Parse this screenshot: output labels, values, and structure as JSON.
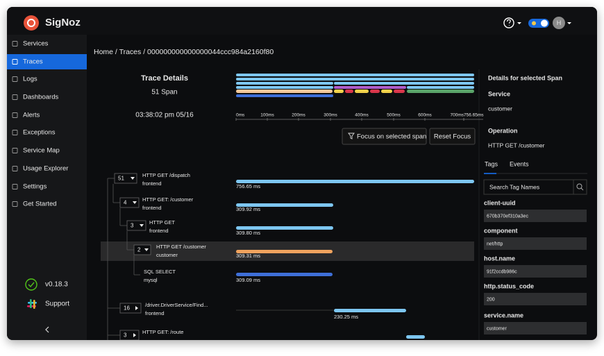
{
  "header": {
    "logo": "SigNoz",
    "avatar": "H"
  },
  "sidebar": {
    "items": [
      "Services",
      "Traces",
      "Logs",
      "Dashboards",
      "Alerts",
      "Exceptions",
      "Service Map",
      "Usage Explorer",
      "Settings",
      "Get Started"
    ],
    "selected": 1,
    "version": "v0.18.3",
    "support": "Support"
  },
  "breadcrumb": "Home / Traces / 000000000000000044ccc984a2160f80",
  "trace_details": {
    "title": "Trace Details",
    "span_count": "51 Span",
    "timestamp": "03:38:02 pm 05/16"
  },
  "timeline": {
    "ticks": [
      "0ms",
      "100ms",
      "200ms",
      "300ms",
      "400ms",
      "500ms",
      "600ms",
      "700ms",
      "756.65ms"
    ]
  },
  "buttons": {
    "focus": "Focus on selected span",
    "reset": "Reset Focus"
  },
  "spans": [
    {
      "count": 51,
      "name": "HTTP GET /dispatch",
      "service": "frontend",
      "duration": "756.65 ms"
    },
    {
      "count": 4,
      "name": "HTTP GET: /customer",
      "service": "frontend",
      "duration": "309.92 ms"
    },
    {
      "count": 3,
      "name": "HTTP GET",
      "service": "frontend",
      "duration": "309.80 ms"
    },
    {
      "count": 2,
      "name": "HTTP GET /customer",
      "service": "customer",
      "duration": "309.31 ms"
    },
    {
      "name": "SQL SELECT",
      "service": "mysql",
      "duration": "309.09 ms"
    },
    {
      "count": 16,
      "name": "/driver.DriverService/Find...",
      "service": "frontend",
      "duration": "230.25 ms"
    },
    {
      "count": 3,
      "name": "HTTP GET: /route"
    }
  ],
  "details": {
    "title": "Details for selected Span",
    "service_label": "Service",
    "service": "customer",
    "operation_label": "Operation",
    "operation": "HTTP GET /customer",
    "tabs": [
      "Tags",
      "Events"
    ],
    "search_placeholder": "Search Tag Names",
    "tags": [
      {
        "key": "client-uuid",
        "value": "670b370ef310a3ec"
      },
      {
        "key": "component",
        "value": "net/http"
      },
      {
        "key": "host.name",
        "value": "91f2ccdb986c"
      },
      {
        "key": "http.status_code",
        "value": "200"
      },
      {
        "key": "service.name",
        "value": "customer"
      }
    ]
  }
}
